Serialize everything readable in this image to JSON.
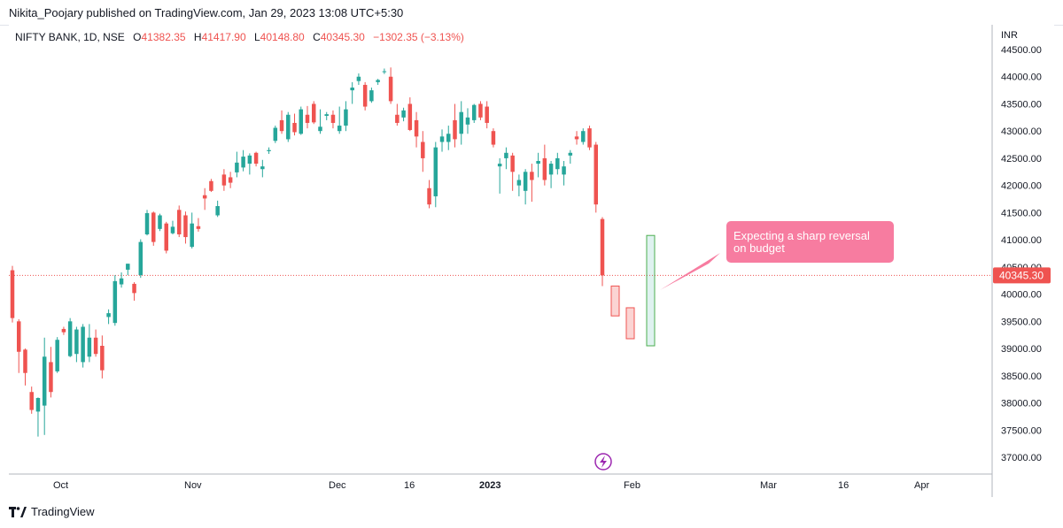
{
  "header": {
    "published_by": "Nikita_Poojary published on TradingView.com, Jan 29, 2023 13:08 UTC+5:30"
  },
  "legend": {
    "symbol": "NIFTY BANK, 1D, NSE",
    "open_label": "O",
    "open": "41382.35",
    "high_label": "H",
    "high": "41417.90",
    "low_label": "L",
    "low": "40148.80",
    "close_label": "C",
    "close": "40345.30",
    "change": "−1302.35 (−3.13%)"
  },
  "footer": {
    "brand": "TradingView"
  },
  "colors": {
    "up": "#26a69a",
    "down": "#ef5350",
    "callout": "#f77ca0",
    "price_line": "#ef5350"
  },
  "chart_data": {
    "type": "candlestick",
    "currency_label": "INR",
    "ylim": [
      36800,
      44800
    ],
    "y_ticks": [
      37000,
      37500,
      38000,
      38500,
      39000,
      39500,
      40000,
      40500,
      41000,
      41500,
      42000,
      42500,
      43000,
      43500,
      44000,
      44500
    ],
    "x_ticks": [
      "Oct",
      "Nov",
      "Dec",
      "16",
      "2023",
      "Feb",
      "Mar",
      "16",
      "Apr"
    ],
    "last_price": "40345.30",
    "candles": [
      {
        "o": 40440,
        "h": 40520,
        "l": 39480,
        "c": 39560
      },
      {
        "o": 39500,
        "h": 39540,
        "l": 38550,
        "c": 38940
      },
      {
        "o": 38980,
        "h": 39000,
        "l": 38320,
        "c": 38550
      },
      {
        "o": 38200,
        "h": 38300,
        "l": 37800,
        "c": 37870
      },
      {
        "o": 37840,
        "h": 38100,
        "l": 37380,
        "c": 38090
      },
      {
        "o": 37950,
        "h": 39200,
        "l": 37410,
        "c": 38850
      },
      {
        "o": 38750,
        "h": 39030,
        "l": 38100,
        "c": 38200
      },
      {
        "o": 38580,
        "h": 39210,
        "l": 38550,
        "c": 39160
      },
      {
        "o": 39360,
        "h": 39400,
        "l": 39250,
        "c": 39300
      },
      {
        "o": 38860,
        "h": 39560,
        "l": 38840,
        "c": 39500
      },
      {
        "o": 38900,
        "h": 39400,
        "l": 38750,
        "c": 39350
      },
      {
        "o": 38750,
        "h": 39450,
        "l": 38650,
        "c": 39400
      },
      {
        "o": 38850,
        "h": 39450,
        "l": 38750,
        "c": 39200
      },
      {
        "o": 39200,
        "h": 39350,
        "l": 38850,
        "c": 38900
      },
      {
        "o": 39050,
        "h": 39240,
        "l": 38450,
        "c": 38600
      },
      {
        "o": 39580,
        "h": 39720,
        "l": 39450,
        "c": 39650
      },
      {
        "o": 39470,
        "h": 40350,
        "l": 39420,
        "c": 40240
      },
      {
        "o": 40180,
        "h": 40400,
        "l": 40120,
        "c": 40290
      },
      {
        "o": 40450,
        "h": 40560,
        "l": 40350,
        "c": 40560
      },
      {
        "o": 40190,
        "h": 40220,
        "l": 39880,
        "c": 40020
      },
      {
        "o": 40350,
        "h": 41010,
        "l": 40300,
        "c": 40960
      },
      {
        "o": 41100,
        "h": 41550,
        "l": 41080,
        "c": 41490
      },
      {
        "o": 41500,
        "h": 41520,
        "l": 40890,
        "c": 40960
      },
      {
        "o": 41200,
        "h": 41480,
        "l": 41160,
        "c": 41450
      },
      {
        "o": 41300,
        "h": 41330,
        "l": 40750,
        "c": 40800
      },
      {
        "o": 41120,
        "h": 41350,
        "l": 41100,
        "c": 41240
      },
      {
        "o": 41550,
        "h": 41630,
        "l": 41050,
        "c": 41100
      },
      {
        "o": 41450,
        "h": 41520,
        "l": 40930,
        "c": 41050
      },
      {
        "o": 40870,
        "h": 41500,
        "l": 40840,
        "c": 41300
      },
      {
        "o": 41250,
        "h": 41400,
        "l": 41150,
        "c": 41200
      },
      {
        "o": 41820,
        "h": 41950,
        "l": 41550,
        "c": 41760
      },
      {
        "o": 42080,
        "h": 42120,
        "l": 41880,
        "c": 41900
      },
      {
        "o": 41450,
        "h": 41720,
        "l": 41420,
        "c": 41620
      },
      {
        "o": 42200,
        "h": 42300,
        "l": 41900,
        "c": 42000
      },
      {
        "o": 42150,
        "h": 42250,
        "l": 41950,
        "c": 42050
      },
      {
        "o": 42240,
        "h": 42620,
        "l": 42150,
        "c": 42420
      },
      {
        "o": 42330,
        "h": 42650,
        "l": 42260,
        "c": 42530
      },
      {
        "o": 42400,
        "h": 42590,
        "l": 42200,
        "c": 42550
      },
      {
        "o": 42600,
        "h": 42620,
        "l": 42350,
        "c": 42400
      },
      {
        "o": 42300,
        "h": 42470,
        "l": 42150,
        "c": 42350
      },
      {
        "o": 42630,
        "h": 42700,
        "l": 42580,
        "c": 42650
      },
      {
        "o": 42820,
        "h": 43100,
        "l": 42780,
        "c": 43060
      },
      {
        "o": 43200,
        "h": 43380,
        "l": 42950,
        "c": 43000
      },
      {
        "o": 42850,
        "h": 43350,
        "l": 42800,
        "c": 43300
      },
      {
        "o": 43150,
        "h": 43320,
        "l": 42920,
        "c": 42980
      },
      {
        "o": 42950,
        "h": 43450,
        "l": 42930,
        "c": 43400
      },
      {
        "o": 43300,
        "h": 43460,
        "l": 43050,
        "c": 43150
      },
      {
        "o": 43500,
        "h": 43550,
        "l": 43130,
        "c": 43160
      },
      {
        "o": 43000,
        "h": 43400,
        "l": 42950,
        "c": 43080
      },
      {
        "o": 43280,
        "h": 43350,
        "l": 43200,
        "c": 43310
      },
      {
        "o": 43300,
        "h": 43380,
        "l": 43050,
        "c": 43150
      },
      {
        "o": 43000,
        "h": 43450,
        "l": 42950,
        "c": 43100
      },
      {
        "o": 43100,
        "h": 43550,
        "l": 43000,
        "c": 43400
      },
      {
        "o": 43750,
        "h": 43900,
        "l": 43500,
        "c": 43800
      },
      {
        "o": 43920,
        "h": 44060,
        "l": 43850,
        "c": 44000
      },
      {
        "o": 43850,
        "h": 43900,
        "l": 43380,
        "c": 43450
      },
      {
        "o": 43550,
        "h": 43800,
        "l": 43520,
        "c": 43750
      },
      {
        "o": 43900,
        "h": 43960,
        "l": 43850,
        "c": 43940
      },
      {
        "o": 44100,
        "h": 44150,
        "l": 44050,
        "c": 44100
      },
      {
        "o": 44000,
        "h": 44170,
        "l": 43500,
        "c": 43550
      },
      {
        "o": 43300,
        "h": 43500,
        "l": 43100,
        "c": 43150
      },
      {
        "o": 43250,
        "h": 43430,
        "l": 43180,
        "c": 43380
      },
      {
        "o": 43500,
        "h": 43620,
        "l": 43000,
        "c": 43020
      },
      {
        "o": 43200,
        "h": 43350,
        "l": 42700,
        "c": 42900
      },
      {
        "o": 42800,
        "h": 43000,
        "l": 42250,
        "c": 42500
      },
      {
        "o": 41950,
        "h": 42100,
        "l": 41580,
        "c": 41650
      },
      {
        "o": 41800,
        "h": 42800,
        "l": 41600,
        "c": 42700
      },
      {
        "o": 42800,
        "h": 43030,
        "l": 42620,
        "c": 42900
      },
      {
        "o": 42800,
        "h": 43100,
        "l": 42650,
        "c": 42950
      },
      {
        "o": 43200,
        "h": 43500,
        "l": 42700,
        "c": 42850
      },
      {
        "o": 42950,
        "h": 43550,
        "l": 42750,
        "c": 43350
      },
      {
        "o": 43120,
        "h": 43420,
        "l": 42950,
        "c": 43250
      },
      {
        "o": 43200,
        "h": 43500,
        "l": 43150,
        "c": 43480
      },
      {
        "o": 43500,
        "h": 43550,
        "l": 43200,
        "c": 43250
      },
      {
        "o": 43450,
        "h": 43550,
        "l": 43050,
        "c": 43150
      },
      {
        "o": 43000,
        "h": 43050,
        "l": 42700,
        "c": 42750
      },
      {
        "o": 42350,
        "h": 42500,
        "l": 41850,
        "c": 42400
      },
      {
        "o": 42500,
        "h": 42700,
        "l": 42300,
        "c": 42600
      },
      {
        "o": 42550,
        "h": 42600,
        "l": 41900,
        "c": 42250
      },
      {
        "o": 42000,
        "h": 42200,
        "l": 41800,
        "c": 42100
      },
      {
        "o": 41900,
        "h": 42300,
        "l": 41650,
        "c": 42250
      },
      {
        "o": 42250,
        "h": 42400,
        "l": 41700,
        "c": 42100
      },
      {
        "o": 42400,
        "h": 42600,
        "l": 42150,
        "c": 42450
      },
      {
        "o": 42500,
        "h": 42750,
        "l": 42000,
        "c": 42100
      },
      {
        "o": 42200,
        "h": 42450,
        "l": 41950,
        "c": 42400
      },
      {
        "o": 42300,
        "h": 42600,
        "l": 42200,
        "c": 42500
      },
      {
        "o": 42200,
        "h": 42450,
        "l": 42000,
        "c": 42350
      },
      {
        "o": 42550,
        "h": 42650,
        "l": 42400,
        "c": 42600
      },
      {
        "o": 42900,
        "h": 43000,
        "l": 42750,
        "c": 42850
      },
      {
        "o": 42800,
        "h": 43050,
        "l": 42750,
        "c": 43000
      },
      {
        "o": 43050,
        "h": 43100,
        "l": 42650,
        "c": 42700
      },
      {
        "o": 42750,
        "h": 42800,
        "l": 41500,
        "c": 41650
      },
      {
        "o": 41382.35,
        "h": 41417.9,
        "l": 40148.8,
        "c": 40345.3
      }
    ],
    "projected_bars": [
      {
        "kind": "down",
        "top": 40150,
        "bottom": 39600
      },
      {
        "kind": "down",
        "top": 39750,
        "bottom": 39180
      },
      {
        "kind": "up",
        "top": 41080,
        "bottom": 39050
      }
    ],
    "annotation": "Expecting a sharp reversal\non budget"
  }
}
